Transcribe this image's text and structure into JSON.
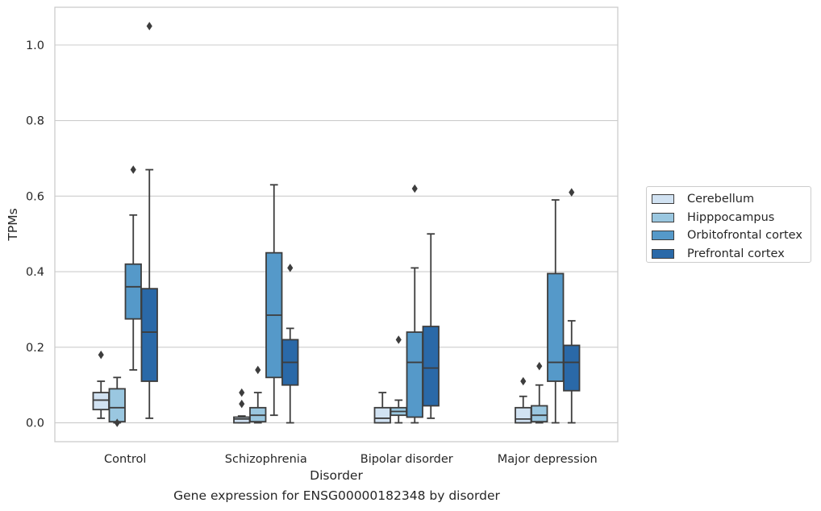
{
  "chart_data": {
    "type": "box",
    "title": "",
    "caption": "Gene expression for ENSG00000182348 by disorder",
    "xlabel": "Disorder",
    "ylabel": "TPMs",
    "ylim": [
      -0.05,
      1.1
    ],
    "yticks": [
      "0.0",
      "0.2",
      "0.4",
      "0.6",
      "0.8",
      "1.0"
    ],
    "grid": true,
    "legend_position": "right",
    "categories": [
      "Control",
      "Schizophrenia",
      "Bipolar disorder",
      "Major depression"
    ],
    "series": [
      {
        "name": "Cerebellum",
        "color": "#d1e2f2",
        "boxes": [
          {
            "whislo": 0.012,
            "q1": 0.035,
            "med": 0.06,
            "q3": 0.08,
            "whishi": 0.11,
            "fliers": [
              0.18
            ]
          },
          {
            "whislo": 0.0,
            "q1": 0.0,
            "med": 0.01,
            "q3": 0.015,
            "whishi": 0.018,
            "fliers": [
              0.05,
              0.08
            ]
          },
          {
            "whislo": 0.0,
            "q1": 0.0,
            "med": 0.012,
            "q3": 0.04,
            "whishi": 0.08,
            "fliers": []
          },
          {
            "whislo": 0.0,
            "q1": 0.0,
            "med": 0.01,
            "q3": 0.04,
            "whishi": 0.07,
            "fliers": [
              0.11
            ]
          }
        ]
      },
      {
        "name": "Hipppocampus",
        "color": "#9ac7e0",
        "boxes": [
          {
            "whislo": 0.0,
            "q1": 0.003,
            "med": 0.04,
            "q3": 0.09,
            "whishi": 0.12,
            "fliers": [
              0.0
            ]
          },
          {
            "whislo": 0.0,
            "q1": 0.003,
            "med": 0.02,
            "q3": 0.04,
            "whishi": 0.08,
            "fliers": [
              0.14
            ]
          },
          {
            "whislo": 0.0,
            "q1": 0.02,
            "med": 0.03,
            "q3": 0.04,
            "whishi": 0.06,
            "fliers": [
              0.22
            ]
          },
          {
            "whislo": 0.0,
            "q1": 0.003,
            "med": 0.02,
            "q3": 0.045,
            "whishi": 0.1,
            "fliers": [
              0.15
            ]
          }
        ]
      },
      {
        "name": "Orbitofrontal cortex",
        "color": "#5599c9",
        "boxes": [
          {
            "whislo": 0.14,
            "q1": 0.275,
            "med": 0.36,
            "q3": 0.42,
            "whishi": 0.55,
            "fliers": [
              0.67
            ]
          },
          {
            "whislo": 0.02,
            "q1": 0.12,
            "med": 0.285,
            "q3": 0.45,
            "whishi": 0.63,
            "fliers": []
          },
          {
            "whislo": 0.0,
            "q1": 0.015,
            "med": 0.16,
            "q3": 0.24,
            "whishi": 0.41,
            "fliers": [
              0.62
            ]
          },
          {
            "whislo": 0.0,
            "q1": 0.11,
            "med": 0.16,
            "q3": 0.395,
            "whishi": 0.59,
            "fliers": []
          }
        ]
      },
      {
        "name": "Prefrontal cortex",
        "color": "#2a69a8",
        "boxes": [
          {
            "whislo": 0.012,
            "q1": 0.11,
            "med": 0.24,
            "q3": 0.355,
            "whishi": 0.67,
            "fliers": [
              1.05
            ]
          },
          {
            "whislo": 0.0,
            "q1": 0.1,
            "med": 0.16,
            "q3": 0.22,
            "whishi": 0.25,
            "fliers": [
              0.41
            ]
          },
          {
            "whislo": 0.012,
            "q1": 0.045,
            "med": 0.145,
            "q3": 0.255,
            "whishi": 0.5,
            "fliers": []
          },
          {
            "whislo": 0.0,
            "q1": 0.085,
            "med": 0.16,
            "q3": 0.205,
            "whishi": 0.27,
            "fliers": [
              0.61
            ]
          }
        ]
      }
    ]
  }
}
